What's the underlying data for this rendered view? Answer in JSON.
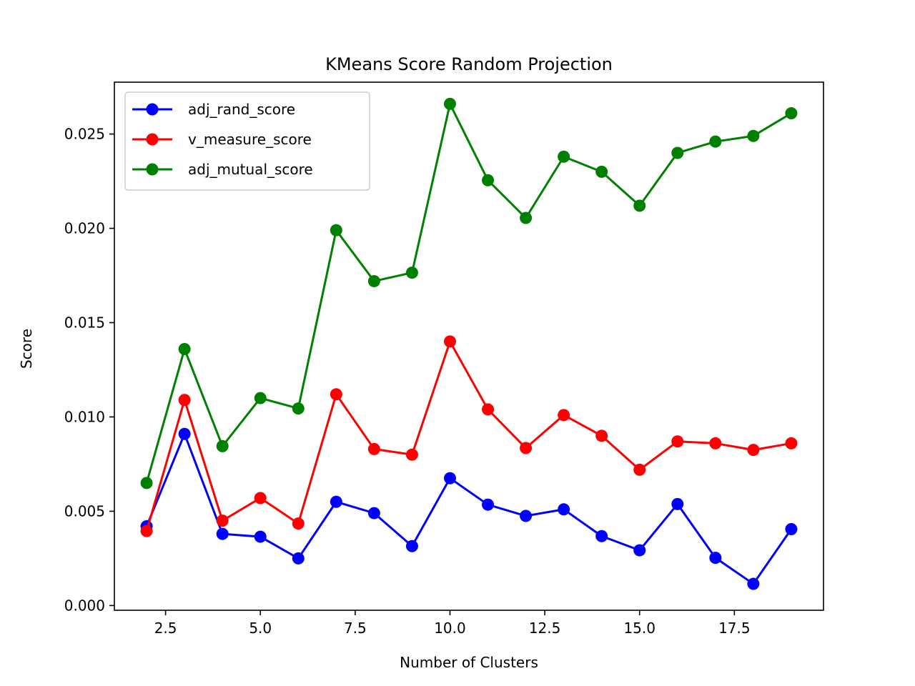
{
  "chart_data": {
    "type": "line",
    "title": "KMeans Score Random Projection",
    "xlabel": "Number of Clusters",
    "ylabel": "Score",
    "xlim": [
      1.15,
      19.85
    ],
    "ylim": [
      -0.00025,
      0.02775
    ],
    "x": [
      2,
      3,
      4,
      5,
      6,
      7,
      8,
      9,
      10,
      11,
      12,
      13,
      14,
      15,
      16,
      17,
      18,
      19
    ],
    "xticks": [
      2.5,
      5.0,
      7.5,
      10.0,
      12.5,
      15.0,
      17.5
    ],
    "xtick_labels": [
      "2.5",
      "5.0",
      "7.5",
      "10.0",
      "12.5",
      "15.0",
      "17.5"
    ],
    "yticks": [
      0.0,
      0.005,
      0.01,
      0.015,
      0.02,
      0.025
    ],
    "ytick_labels": [
      "0.000",
      "0.005",
      "0.010",
      "0.015",
      "0.020",
      "0.025"
    ],
    "grid": false,
    "legend_position": "top-left",
    "series": [
      {
        "name": "adj_rand_score",
        "color": "#0000ff",
        "values": [
          0.0042,
          0.0091,
          0.0038,
          0.00365,
          0.0025,
          0.0055,
          0.0049,
          0.00315,
          0.00675,
          0.00535,
          0.00475,
          0.0051,
          0.00368,
          0.00293,
          0.00538,
          0.00253,
          0.00115,
          0.00405
        ]
      },
      {
        "name": "v_measure_score",
        "color": "#ff0000",
        "values": [
          0.00395,
          0.0109,
          0.0045,
          0.0057,
          0.00435,
          0.0112,
          0.0083,
          0.008,
          0.014,
          0.0104,
          0.00835,
          0.0101,
          0.009,
          0.0072,
          0.0087,
          0.0086,
          0.00825,
          0.0086
        ]
      },
      {
        "name": "adj_mutual_score",
        "color": "#008000",
        "values": [
          0.0065,
          0.0136,
          0.00845,
          0.011,
          0.01045,
          0.0199,
          0.0172,
          0.01765,
          0.0266,
          0.02255,
          0.02055,
          0.0238,
          0.023,
          0.0212,
          0.024,
          0.0246,
          0.0249,
          0.0261
        ]
      }
    ]
  }
}
